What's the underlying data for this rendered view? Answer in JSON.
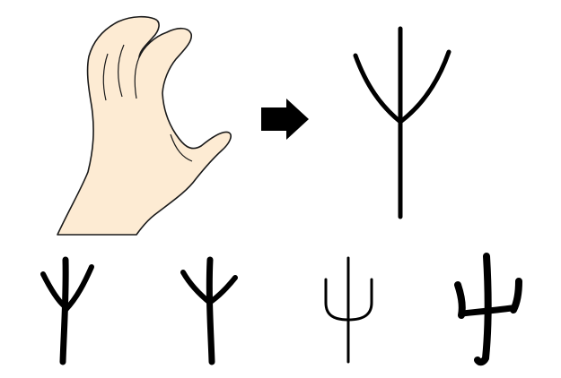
{
  "figure": {
    "panels": [
      {
        "id": "hand-illustration",
        "depicts": "hand"
      },
      {
        "id": "transform-arrow",
        "depicts": "arrow-right"
      },
      {
        "id": "stylized-glyph",
        "depicts": "trident-pictograph"
      }
    ],
    "glyph_variants": [
      {
        "id": "variant-1",
        "style": "oracle-bone"
      },
      {
        "id": "variant-2",
        "style": "bronze"
      },
      {
        "id": "variant-3",
        "style": "seal"
      },
      {
        "id": "variant-4",
        "style": "clerical"
      }
    ],
    "colors": {
      "skin": "#fdebd3",
      "outline": "#1a1a1a",
      "ink": "#000000",
      "background": "#ffffff"
    }
  }
}
